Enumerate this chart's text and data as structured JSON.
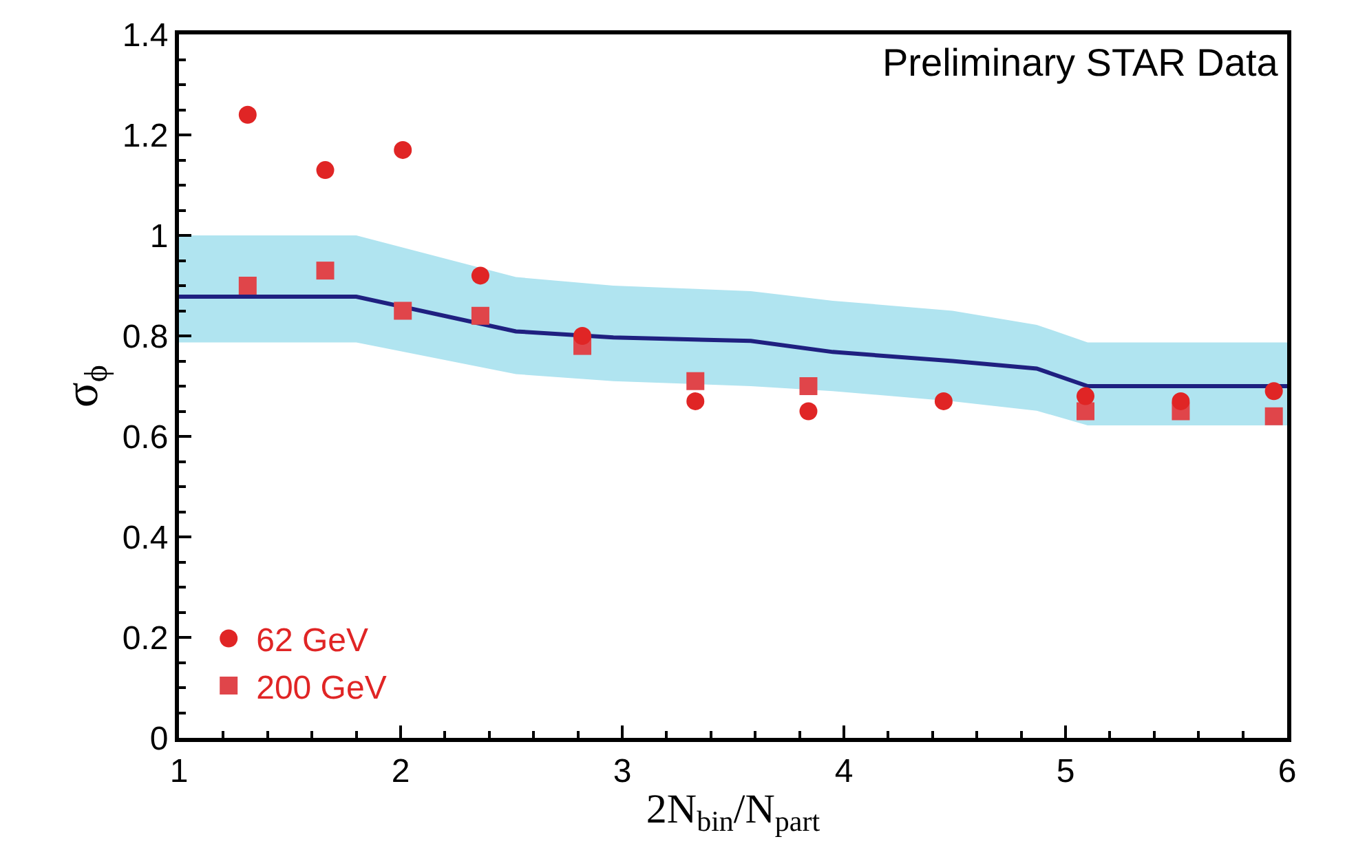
{
  "chart_data": {
    "type": "scatter",
    "xlabel": "2N$_{bin}$/N$_{part}$",
    "ylabel": "σ$_{ϕ}$",
    "annotations": [
      "Preliminary STAR Data"
    ],
    "xlim": [
      1,
      6
    ],
    "xticks": [
      1,
      2,
      3,
      4,
      5,
      6
    ],
    "ylim": [
      0,
      1.4
    ],
    "yticks": [
      0,
      0.2,
      0.4,
      0.6,
      0.8,
      1,
      1.2,
      1.4
    ],
    "legend": "bottom left",
    "series": [
      {
        "type": "line",
        "color": "#1f2080",
        "marker": "none",
        "line_style": "solid",
        "x": [
          1,
          1.8,
          2.52,
          2.96,
          3.58,
          3.95,
          4.49,
          4.87,
          5.1,
          6
        ],
        "values": [
          0.878,
          0.878,
          0.809,
          0.797,
          0.79,
          0.768,
          0.75,
          0.735,
          0.7,
          0.7
        ],
        "upper": [
          1.0,
          1.0,
          0.917,
          0.9,
          0.889,
          0.87,
          0.85,
          0.822,
          0.787,
          0.787
        ],
        "lower": [
          0.787,
          0.787,
          0.724,
          0.71,
          0.7,
          0.69,
          0.67,
          0.651,
          0.622,
          0.622
        ]
      },
      {
        "name": "62 GeV",
        "color": "#e02525",
        "marker": "circle",
        "x": [
          1.31,
          1.66,
          2.01,
          2.36,
          2.82,
          3.33,
          3.84,
          4.45,
          5.09,
          5.52,
          5.94
        ],
        "values": [
          1.24,
          1.13,
          1.17,
          0.92,
          0.8,
          0.67,
          0.65,
          0.67,
          0.68,
          0.67,
          0.69
        ]
      },
      {
        "name": "200 GeV",
        "color": "#e0454a",
        "marker": "square",
        "x": [
          1.31,
          1.66,
          2.01,
          2.36,
          2.82,
          3.33,
          3.84,
          4.45,
          5.09,
          5.52,
          5.94
        ],
        "values": [
          0.9,
          0.93,
          0.85,
          0.84,
          0.78,
          0.71,
          0.7,
          null,
          0.65,
          0.65,
          0.64
        ]
      }
    ]
  }
}
